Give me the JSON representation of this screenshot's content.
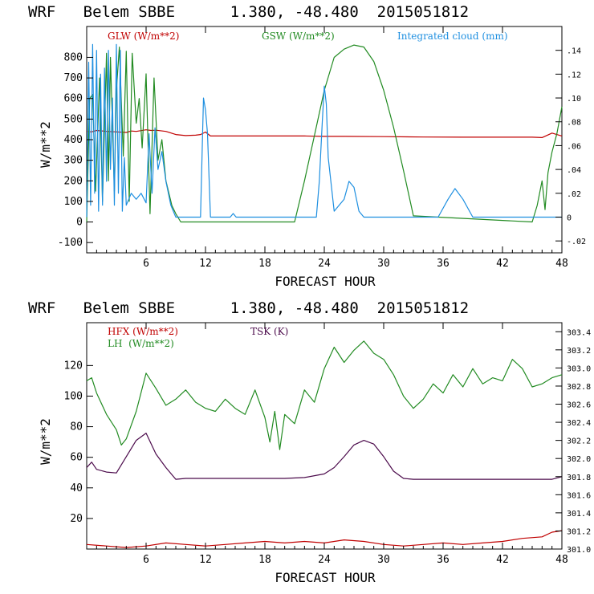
{
  "chart_data": [
    {
      "type": "line",
      "title": "WRF   Belem SBBE      1.380, -48.480  2015051812",
      "xlabel": "FORECAST HOUR",
      "ylabel": "W/m**2",
      "xlim": [
        0,
        48
      ],
      "ylim": [
        -150,
        950
      ],
      "xticks": [
        "6",
        "12",
        "18",
        "24",
        "30",
        "36",
        "42",
        "48"
      ],
      "yticks": [
        "-100",
        "0",
        "100",
        "200",
        "300",
        "400",
        "500",
        "600",
        "700",
        "800"
      ],
      "y2lim": [
        -0.03,
        0.16
      ],
      "y2ticks": [
        "-.02",
        "0",
        ".02",
        ".04",
        ".06",
        ".08",
        ".10",
        ".12",
        ".14"
      ],
      "legend": [
        "GLW (W/m**2)",
        "GSW (W/m**2)",
        "Integrated cloud (mm)"
      ],
      "colors": {
        "glw": "#c00000",
        "gsw": "#228b22",
        "cloud": "#1e8fe0"
      },
      "series": [
        {
          "name": "GLW (W/m**2)",
          "axis": "left",
          "color": "#c00000",
          "x": [
            0,
            0.5,
            1,
            2,
            3,
            4,
            4.5,
            5,
            6,
            6.5,
            7,
            8,
            9,
            10,
            11,
            11.5,
            12,
            12.5,
            14,
            18,
            22,
            24,
            26,
            30,
            34,
            38,
            42,
            45,
            46,
            47,
            48
          ],
          "y": [
            440,
            438,
            445,
            440,
            438,
            435,
            442,
            440,
            448,
            445,
            446,
            440,
            425,
            420,
            422,
            425,
            437,
            418,
            418,
            418,
            418,
            416,
            416,
            415,
            413,
            412,
            412,
            412,
            410,
            432,
            418
          ]
        },
        {
          "name": "GSW (W/m**2)",
          "axis": "left",
          "color": "#228b22",
          "x": [
            0,
            0.3,
            0.6,
            0.9,
            1.3,
            1.6,
            2.0,
            2.2,
            2.4,
            2.8,
            3.0,
            3.3,
            3.7,
            4.0,
            4.3,
            4.6,
            5.0,
            5.3,
            5.6,
            6.0,
            6.4,
            6.8,
            7.2,
            7.6,
            8.0,
            8.6,
            9.0,
            9.5,
            21,
            22,
            23,
            24,
            25,
            26,
            27,
            28,
            29,
            30,
            31,
            32,
            33,
            45,
            45.5,
            46,
            46.3,
            46.6,
            47,
            47.5,
            48
          ],
          "y": [
            0,
            600,
            620,
            150,
            700,
            100,
            820,
            200,
            800,
            150,
            640,
            850,
            320,
            830,
            100,
            820,
            480,
            600,
            360,
            720,
            40,
            700,
            300,
            400,
            200,
            80,
            40,
            0,
            0,
            200,
            420,
            640,
            800,
            840,
            860,
            850,
            780,
            640,
            460,
            250,
            30,
            0,
            80,
            200,
            60,
            240,
            340,
            430,
            560
          ]
        },
        {
          "name": "Integrated cloud (mm)",
          "axis": "right",
          "color": "#1e8fe0",
          "x": [
            0,
            0.2,
            0.4,
            0.6,
            0.8,
            1.0,
            1.2,
            1.4,
            1.6,
            1.8,
            2.0,
            2.2,
            2.4,
            2.6,
            2.8,
            3.0,
            3.2,
            3.4,
            3.6,
            3.8,
            4.0,
            4.5,
            5.0,
            5.5,
            6.0,
            6.3,
            6.6,
            6.9,
            7.2,
            7.6,
            8.0,
            8.5,
            9.0,
            11.5,
            11.8,
            12.0,
            12.2,
            12.5,
            14.5,
            14.8,
            15.1,
            23.2,
            23.5,
            23.8,
            24.0,
            24.2,
            24.4,
            25.0,
            26.0,
            26.5,
            27.0,
            27.5,
            28.0,
            35.5,
            36.5,
            37.2,
            38.0,
            39.0,
            48
          ],
          "y": [
            0,
            0.13,
            0.01,
            0.145,
            0.02,
            0.14,
            0.005,
            0.12,
            0.01,
            0.125,
            0.03,
            0.14,
            0.04,
            0.1,
            0.01,
            0.145,
            0.02,
            0.14,
            0.005,
            0.05,
            0.01,
            0.02,
            0.015,
            0.02,
            0.012,
            0.07,
            0.02,
            0.075,
            0.04,
            0.055,
            0.03,
            0.01,
            0,
            0,
            0.1,
            0.09,
            0.07,
            0,
            0,
            0.003,
            0,
            0,
            0.03,
            0.08,
            0.11,
            0.095,
            0.05,
            0.005,
            0.015,
            0.03,
            0.025,
            0.005,
            0,
            0,
            0.015,
            0.024,
            0.015,
            0,
            0
          ]
        }
      ]
    },
    {
      "type": "line",
      "title": "WRF   Belem SBBE      1.380, -48.480  2015051812",
      "xlabel": "FORECAST HOUR",
      "ylabel": "W/m**2",
      "xlim": [
        0,
        48
      ],
      "ylim": [
        0,
        148
      ],
      "xticks": [
        "6",
        "12",
        "18",
        "24",
        "30",
        "36",
        "42",
        "48"
      ],
      "yticks": [
        "20",
        "40",
        "60",
        "80",
        "100",
        "120"
      ],
      "y2lim": [
        301.0,
        303.5
      ],
      "y2ticks": [
        "301.0",
        "301.2",
        "301.4",
        "301.6",
        "301.8",
        "302.0",
        "302.2",
        "302.4",
        "302.6",
        "302.8",
        "303.0",
        "303.2",
        "303.4"
      ],
      "legend": [
        "HFX (W/m**2)",
        "LH  (W/m**2)",
        "TSK (K)"
      ],
      "colors": {
        "hfx": "#c00000",
        "lh": "#228b22",
        "tsk": "#4b0a4b"
      },
      "series": [
        {
          "name": "HFX (W/m**2)",
          "axis": "left",
          "color": "#c00000",
          "x": [
            0,
            2,
            4,
            6,
            8,
            10,
            12,
            14,
            16,
            18,
            20,
            22,
            24,
            26,
            28,
            30,
            32,
            34,
            36,
            38,
            40,
            42,
            44,
            46,
            47,
            48
          ],
          "y": [
            3,
            2,
            1,
            2,
            4,
            3,
            2,
            3,
            4,
            5,
            4,
            5,
            4,
            6,
            5,
            3,
            2,
            3,
            4,
            3,
            4,
            5,
            7,
            8,
            11,
            12
          ]
        },
        {
          "name": "LH  (W/m**2)",
          "axis": "left",
          "color": "#228b22",
          "x": [
            0,
            0.5,
            1,
            2,
            3,
            3.5,
            4,
            5,
            6,
            7,
            8,
            9,
            10,
            11,
            12,
            13,
            14,
            15,
            16,
            17,
            18,
            18.5,
            19,
            19.5,
            20,
            21,
            22,
            23,
            24,
            25,
            26,
            27,
            28,
            29,
            30,
            31,
            32,
            33,
            34,
            35,
            36,
            37,
            38,
            39,
            40,
            41,
            42,
            43,
            44,
            45,
            46,
            47,
            48
          ],
          "y": [
            110,
            112,
            102,
            88,
            78,
            68,
            72,
            90,
            115,
            105,
            94,
            98,
            104,
            96,
            92,
            90,
            98,
            92,
            88,
            104,
            86,
            70,
            90,
            65,
            88,
            82,
            104,
            96,
            118,
            132,
            122,
            130,
            136,
            128,
            124,
            114,
            100,
            92,
            98,
            108,
            102,
            114,
            106,
            118,
            108,
            112,
            110,
            124,
            118,
            106,
            108,
            112,
            114
          ]
        },
        {
          "name": "TSK (K)",
          "axis": "right",
          "color": "#4b0a4b",
          "x": [
            0,
            0.5,
            1,
            2,
            3,
            4,
            5,
            6,
            7,
            8,
            9,
            10,
            12,
            14,
            16,
            18,
            20,
            22,
            24,
            25,
            26,
            27,
            28,
            29,
            30,
            31,
            32,
            33,
            34,
            36,
            38,
            40,
            42,
            44,
            46,
            47,
            48
          ],
          "y": [
            301.9,
            301.96,
            301.88,
            301.85,
            301.84,
            302.02,
            302.2,
            302.28,
            302.05,
            301.9,
            301.77,
            301.78,
            301.78,
            301.78,
            301.78,
            301.78,
            301.78,
            301.79,
            301.83,
            301.9,
            302.02,
            302.15,
            302.2,
            302.16,
            302.02,
            301.86,
            301.78,
            301.77,
            301.77,
            301.77,
            301.77,
            301.77,
            301.77,
            301.77,
            301.77,
            301.77,
            301.8
          ]
        }
      ]
    }
  ]
}
